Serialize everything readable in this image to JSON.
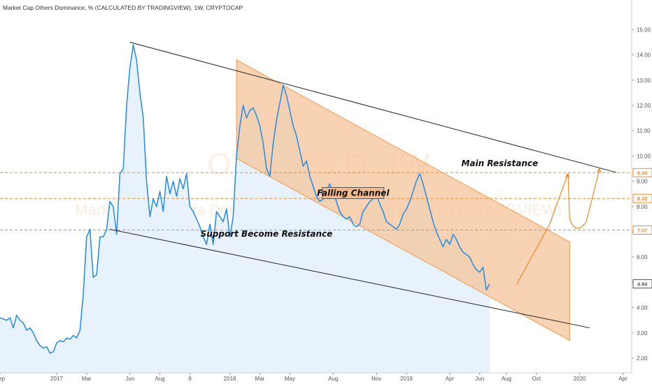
{
  "header": {
    "title": "Market Cap Others Dominance, % (CALCULATED BY TRADINGVIEW), 1W, CRYPTOCAP"
  },
  "watermark": {
    "symbol": "OTHERS.D, 1W",
    "name": "Market Cap Others Dominance, % (CALCULATED BY TRADINGVIEW)"
  },
  "colors": {
    "line": "#2f8fe0",
    "area": "#e8f2fc",
    "channel": "#f5c49a",
    "channel_border": "#f29a4e",
    "level": "#f08a2a",
    "trendline": "#222222",
    "projection": "#f08a2a"
  },
  "chart_data": {
    "type": "line",
    "ylim": [
      1.5,
      15.5
    ],
    "y_ticks": [
      "2.00",
      "3.00",
      "4.00",
      "5.00",
      "6.00",
      "7.00",
      "8.00",
      "9.00",
      "10.00",
      "11.00",
      "12.00",
      "13.00",
      "14.00",
      "15.00"
    ],
    "x_ticks": [
      {
        "label": "Sep",
        "t": 0
      },
      {
        "label": "2017",
        "t": 17
      },
      {
        "label": "Mar",
        "t": 26
      },
      {
        "label": "Jun",
        "t": 39
      },
      {
        "label": "Aug",
        "t": 48
      },
      {
        "label": "9",
        "t": 57
      },
      {
        "label": "2018",
        "t": 69
      },
      {
        "label": "Mar",
        "t": 78
      },
      {
        "label": "May",
        "t": 87
      },
      {
        "label": "Aug",
        "t": 100
      },
      {
        "label": "Nov",
        "t": 113
      },
      {
        "label": "2019",
        "t": 122
      },
      {
        "label": "Apr",
        "t": 135
      },
      {
        "label": "Jun",
        "t": 144
      },
      {
        "label": "Aug",
        "t": 152
      },
      {
        "label": "Oct",
        "t": 161
      },
      {
        "label": "2020",
        "t": 174
      },
      {
        "label": "Apr",
        "t": 187
      }
    ],
    "series": [
      {
        "values": [
          3.6,
          3.55,
          3.5,
          3.6,
          3.2,
          3.7,
          3.5,
          3.4,
          3.1,
          3.2,
          3.0,
          2.7,
          2.5,
          2.4,
          2.45,
          2.2,
          2.25,
          2.6,
          2.7,
          2.65,
          2.8,
          2.75,
          2.9,
          2.8,
          3.1,
          4.5,
          6.8,
          7.1,
          5.2,
          5.3,
          6.8,
          6.8,
          7.1,
          8.2,
          8.0,
          6.9,
          9.3,
          9.5,
          12.0,
          13.5,
          14.4,
          13.8,
          12.5,
          11.5,
          9.0,
          7.6,
          8.3,
          8.0,
          8.6,
          7.8,
          9.2,
          8.5,
          9.0,
          8.4,
          9.1,
          8.7,
          9.3,
          8.0,
          7.8,
          7.5,
          7.2,
          6.8,
          6.5,
          7.3,
          6.5,
          7.8,
          7.6,
          7.4,
          7.9,
          6.8,
          7.6,
          10.0,
          11.2,
          12.0,
          11.5,
          11.8,
          11.9,
          11.6,
          11.2,
          10.5,
          9.5,
          9.2,
          10.5,
          11.4,
          12.1,
          12.8,
          12.4,
          11.8,
          11.2,
          10.8,
          10.2,
          9.6,
          9.8,
          9.2,
          8.8,
          8.4,
          8.2,
          8.3,
          8.6,
          8.9,
          8.5,
          8.2,
          7.8,
          7.6,
          7.5,
          7.6,
          7.3,
          7.2,
          7.3,
          7.8,
          8.0,
          8.2,
          8.3,
          8.5,
          8.1,
          7.8,
          7.4,
          7.3,
          7.2,
          7.1,
          7.3,
          7.7,
          7.9,
          8.2,
          8.6,
          9.0,
          9.3,
          8.9,
          8.4,
          7.9,
          7.4,
          7.0,
          6.7,
          6.4,
          6.7,
          6.5,
          6.9,
          6.7,
          6.4,
          6.2,
          6.1,
          6.0,
          5.7,
          5.5,
          5.4,
          5.6,
          4.7,
          4.94
        ]
      }
    ],
    "price_labels": [
      {
        "label": "9.34",
        "value": 9.34,
        "color": "#f08a2a"
      },
      {
        "label": "8.32",
        "value": 8.32,
        "color": "#f08a2a"
      },
      {
        "label": "7.07",
        "value": 7.07,
        "color": "#f08a2a"
      },
      {
        "label": "4.94",
        "value": 4.94,
        "color": "#555555"
      }
    ],
    "horizontal_levels": [
      9.34,
      8.32,
      7.07
    ],
    "trendlines": [
      {
        "from": {
          "t": 39,
          "v": 14.5
        },
        "to": {
          "t": 185,
          "v": 9.35
        }
      },
      {
        "from": {
          "t": 33,
          "v": 7.1
        },
        "to": {
          "t": 177,
          "v": 3.2
        }
      }
    ],
    "channel": {
      "upper": [
        {
          "t": 71,
          "v": 13.8
        },
        {
          "t": 171,
          "v": 6.6
        }
      ],
      "lower": [
        {
          "t": 71,
          "v": 9.9
        },
        {
          "t": 171,
          "v": 2.7
        }
      ]
    },
    "projection": [
      {
        "t": 155,
        "v": 4.9
      },
      {
        "t": 165,
        "v": 7.3
      },
      {
        "t": 170.5,
        "v": 9.3
      },
      {
        "t": 171,
        "v": 7.5
      },
      {
        "t": 173,
        "v": 7.1
      },
      {
        "t": 176,
        "v": 7.4
      },
      {
        "t": 180,
        "v": 9.5
      }
    ],
    "annotations": [
      {
        "label": "Main Resistance",
        "t": 150,
        "v": 9.6
      },
      {
        "label": "Falling Channel",
        "t": 106,
        "v": 8.45
      },
      {
        "label": "Support Become Resistance",
        "t": 80,
        "v": 6.8
      }
    ]
  }
}
